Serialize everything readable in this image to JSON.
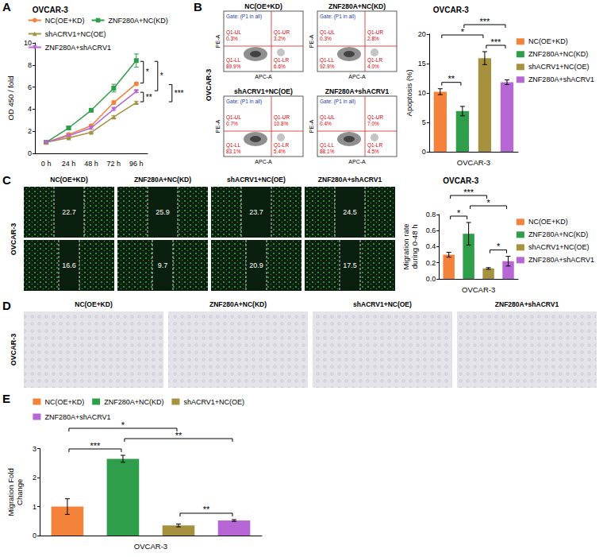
{
  "letters": [
    "A",
    "B",
    "C",
    "D",
    "E"
  ],
  "chart_data": [
    {
      "type": "line",
      "title": "OVCAR-3",
      "y_label": "OD 450 / fold",
      "categories": [
        "0 h",
        "24 h",
        "48 h",
        "72 h",
        "96 h"
      ],
      "ylim": [
        0,
        10
      ],
      "yticks": [
        0,
        2,
        4,
        6,
        8,
        10
      ],
      "grid": false,
      "legend": "top",
      "series": [
        {
          "name": "NC(OE+KD)",
          "color": "#f5823b",
          "marker": "circle",
          "values": [
            1,
            1.7,
            2.5,
            4.6,
            6.3
          ],
          "errors": [
            0.05,
            0.1,
            0.1,
            0.15,
            0.1
          ]
        },
        {
          "name": "ZNF280A+NC(KD)",
          "color": "#2f9e4a",
          "marker": "square",
          "values": [
            1,
            2.3,
            3.9,
            5.9,
            8.4
          ],
          "errors": [
            0.05,
            0.1,
            0.1,
            0.35,
            0.6
          ]
        },
        {
          "name": "shACRV1+NC(OE)",
          "color": "#a6913f",
          "marker": "triangle",
          "values": [
            1,
            1.4,
            1.9,
            3.3,
            4.6
          ],
          "errors": [
            0.05,
            0.05,
            0.05,
            0.1,
            0.1
          ]
        },
        {
          "name": "ZNF280A+shACRV1",
          "color": "#b766d6",
          "marker": "triangle-down",
          "values": [
            1,
            1.6,
            2.3,
            4.0,
            5.6
          ],
          "errors": [
            0.05,
            0.05,
            0.1,
            0.1,
            0.1
          ]
        }
      ],
      "significance": [
        {
          "from": "ZNF280A+NC(KD)",
          "to": "NC(OE+KD)",
          "label": "*"
        },
        {
          "from": "ZNF280A+shACRV1",
          "to": "shACRV1+NC(OE)",
          "label": "**"
        },
        {
          "from": "ZNF280A+NC(KD)",
          "to": "ZNF280A+shACRV1",
          "label": "*"
        },
        {
          "from": "NC(OE+KD)",
          "to": "shACRV1+NC(OE)",
          "label": "***"
        }
      ]
    },
    {
      "type": "bar",
      "title": "OVCAR-3",
      "x_label": "OVCAR-3",
      "y_label": "Apoptosis (%)",
      "categories": [
        "NC(OE+KD)",
        "ZNF280A+NC(KD)",
        "shACRV1+NC(OE)",
        "ZNF280A+shACRV1"
      ],
      "values": [
        10.2,
        6.9,
        15.9,
        11.8
      ],
      "errors": [
        0.5,
        0.8,
        1.1,
        0.4
      ],
      "colors": [
        "#f5823b",
        "#2f9e4a",
        "#a6913f",
        "#b766d6"
      ],
      "ylim": [
        0,
        20
      ],
      "yticks": [
        0,
        5,
        10,
        15,
        20
      ],
      "grid": false,
      "legend": "right",
      "tick_labels": "y",
      "significance": [
        {
          "from": "NC(OE+KD)",
          "to": "ZNF280A+NC(KD)",
          "label": "**"
        },
        {
          "from": "shACRV1+NC(OE)",
          "to": "ZNF280A+shACRV1",
          "label": "***"
        },
        {
          "from": "NC(OE+KD)",
          "to": "shACRV1+NC(OE)",
          "label": "*"
        },
        {
          "from": "ZNF280A+NC(KD)",
          "to": "ZNF280A+shACRV1",
          "label": "***"
        }
      ]
    },
    {
      "type": "bar",
      "title": "OVCAR-3",
      "x_label": "OVCAR-3",
      "y_label": "Migration rate during 0-48 h",
      "categories": [
        "NC(OE+KD)",
        "ZNF280A+NC(KD)",
        "shACRV1+NC(OE)",
        "ZNF280A+shACRV1"
      ],
      "values": [
        0.3,
        0.56,
        0.13,
        0.22
      ],
      "errors": [
        0.03,
        0.14,
        0.01,
        0.06
      ],
      "colors": [
        "#f5823b",
        "#2f9e4a",
        "#a6913f",
        "#b766d6"
      ],
      "ylim": [
        0,
        0.8
      ],
      "yticks": [
        {
          "value": 0,
          "label": "0.0"
        },
        0.2,
        0.4,
        0.6,
        0.8
      ],
      "grid": false,
      "legend": "right",
      "tick_labels": "y",
      "significance": [
        {
          "from": "shACRV1+NC(OE)",
          "to": "ZNF280A+shACRV1",
          "label": "*"
        },
        {
          "from": "NC(OE+KD)",
          "to": "ZNF280A+NC(KD)",
          "label": "*"
        },
        {
          "from": "ZNF280A+NC(KD)",
          "to": "ZNF280A+shACRV1",
          "label": "*"
        },
        {
          "from": "NC(OE+KD)",
          "to": "shACRV1+NC(OE)",
          "label": "***"
        }
      ]
    },
    {
      "type": "bar",
      "x_label": "OVCAR-3",
      "y_label": "Migration Fold Change",
      "categories": [
        "NC(OE+KD)",
        "ZNF280A+NC(KD)",
        "shACRV1+NC(OE)",
        "ZNF280A+shACRV1"
      ],
      "values": [
        1.0,
        2.65,
        0.35,
        0.52
      ],
      "errors": [
        0.27,
        0.12,
        0.05,
        0.03
      ],
      "colors": [
        "#f5823b",
        "#2f9e4a",
        "#a6913f",
        "#b766d6"
      ],
      "ylim": [
        0,
        3
      ],
      "yticks": [
        0,
        1,
        2,
        3
      ],
      "grid": false,
      "legend": "top",
      "tick_labels": "y",
      "significance": [
        {
          "from": "shACRV1+NC(OE)",
          "to": "ZNF280A+shACRV1",
          "label": "**"
        },
        {
          "from": "NC(OE+KD)",
          "to": "ZNF280A+NC(KD)",
          "label": "***"
        },
        {
          "from": "ZNF280A+NC(KD)",
          "to": "ZNF280A+shACRV1",
          "label": "**"
        },
        {
          "from": "NC(OE+KD)",
          "to": "shACRV1+NC(OE)",
          "label": "*"
        }
      ]
    }
  ],
  "flow_cytometry": {
    "row_label": "OVCAR-3",
    "gate": "Gate: (P1 in all)",
    "x_axis": "APC-A",
    "y_axis": "PE-A",
    "panels": [
      {
        "title": "NC(OE+KD)",
        "quadrants": {
          "UL": {
            "name": "Q1-UL",
            "percent": "0.3%"
          },
          "UR": {
            "name": "Q1-UR",
            "percent": "3.2%"
          },
          "LL": {
            "name": "Q1-LL",
            "percent": "89.9%"
          },
          "LR": {
            "name": "Q1-LR",
            "percent": "6.6%"
          }
        }
      },
      {
        "title": "ZNF280A+NC(KD)",
        "quadrants": {
          "UL": {
            "name": "Q1-UL",
            "percent": "0.3%"
          },
          "UR": {
            "name": "Q1-UR",
            "percent": "2.8%"
          },
          "LL": {
            "name": "Q1-LL",
            "percent": "92.9%"
          },
          "LR": {
            "name": "Q1-LR",
            "percent": "4.0%"
          }
        }
      },
      {
        "title": "shACRV1+NC(OE)",
        "quadrants": {
          "UL": {
            "name": "Q1-UL",
            "percent": "0.7%"
          },
          "UR": {
            "name": "Q1-UR",
            "percent": "10.8%"
          },
          "LL": {
            "name": "Q1-LL",
            "percent": "83.1%"
          },
          "LR": {
            "name": "Q1-LR",
            "percent": "5.4%"
          }
        }
      },
      {
        "title": "ZNF280A+shACRV1",
        "quadrants": {
          "UL": {
            "name": "Q1-UL",
            "percent": "0.4%"
          },
          "UR": {
            "name": "Q1-UR",
            "percent": "7.0%"
          },
          "LL": {
            "name": "Q1-LL",
            "percent": "88.1%"
          },
          "LR": {
            "name": "Q1-LR",
            "percent": "4.5%"
          }
        }
      }
    ]
  },
  "wound_healing": {
    "row_label": "OVCAR-3",
    "panels": [
      {
        "title": "NC(OE+KD)",
        "widths": [
          "22.7",
          "16.6"
        ]
      },
      {
        "title": "ZNF280A+NC(KD)",
        "widths": [
          "25.9",
          "9.7"
        ]
      },
      {
        "title": "shACRV1+NC(OE)",
        "widths": [
          "23.7",
          "20.9"
        ]
      },
      {
        "title": "ZNF280A+shACRV1",
        "widths": [
          "24.5",
          "17.5"
        ]
      }
    ]
  },
  "transwell": {
    "row_label": "OVCAR-3",
    "titles": [
      "NC(OE+KD)",
      "ZNF280A+NC(KD)",
      "shACRV1+NC(OE)",
      "ZNF280A+shACRV1"
    ]
  }
}
